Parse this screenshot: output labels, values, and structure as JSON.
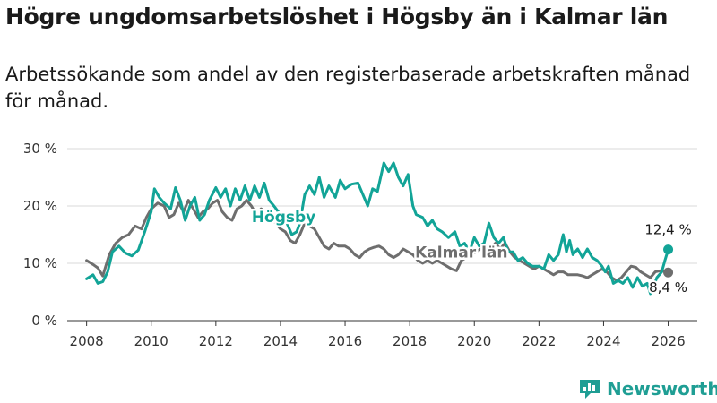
{
  "title": "Högre ungdomsarbetslöshet i Högsby än i Kalmar län",
  "subtitle": "Arbetssökande som andel av den registerbaserade arbetskraften månad för månad.",
  "brand": "Newsworthy",
  "colors": {
    "hogsby": "#12a497",
    "kalmar": "#6e6e6e",
    "grid": "#d9d9d9",
    "axis": "#333333"
  },
  "chart_data": {
    "type": "line",
    "title": "Högre ungdomsarbetslöshet i Högsby än i Kalmar län",
    "xlabel": "",
    "ylabel": "",
    "xlim": [
      2007.4,
      2026.9
    ],
    "ylim": [
      0,
      30
    ],
    "x_ticks": [
      2008,
      2010,
      2012,
      2014,
      2016,
      2018,
      2020,
      2022,
      2024,
      2026
    ],
    "y_ticks": [
      {
        "value": 0,
        "label": "0 %"
      },
      {
        "value": 10,
        "label": "10 %"
      },
      {
        "value": 20,
        "label": "20 %"
      },
      {
        "value": 30,
        "label": "30 %"
      }
    ],
    "grid": true,
    "series": [
      {
        "name": "Högsby",
        "label": "Högsby",
        "label_at": [
          2014.1,
          17.2
        ],
        "end_label": "12,4 %",
        "end_value": 12.4,
        "points": [
          [
            2008.0,
            7.3
          ],
          [
            2008.2,
            8.0
          ],
          [
            2008.35,
            6.5
          ],
          [
            2008.5,
            6.8
          ],
          [
            2008.65,
            8.5
          ],
          [
            2008.8,
            12.0
          ],
          [
            2009.0,
            13.0
          ],
          [
            2009.2,
            11.8
          ],
          [
            2009.4,
            11.3
          ],
          [
            2009.6,
            12.3
          ],
          [
            2009.8,
            15.5
          ],
          [
            2010.0,
            19.0
          ],
          [
            2010.1,
            23.0
          ],
          [
            2010.25,
            21.5
          ],
          [
            2010.4,
            20.5
          ],
          [
            2010.6,
            19.5
          ],
          [
            2010.75,
            23.2
          ],
          [
            2010.9,
            21.0
          ],
          [
            2011.05,
            17.5
          ],
          [
            2011.2,
            20.0
          ],
          [
            2011.35,
            21.5
          ],
          [
            2011.5,
            17.5
          ],
          [
            2011.65,
            18.5
          ],
          [
            2011.8,
            21.0
          ],
          [
            2012.0,
            23.2
          ],
          [
            2012.15,
            21.5
          ],
          [
            2012.3,
            23.0
          ],
          [
            2012.45,
            20.0
          ],
          [
            2012.6,
            23.0
          ],
          [
            2012.75,
            21.0
          ],
          [
            2012.9,
            23.5
          ],
          [
            2013.05,
            21.0
          ],
          [
            2013.2,
            23.5
          ],
          [
            2013.35,
            21.5
          ],
          [
            2013.5,
            24.0
          ],
          [
            2013.65,
            21.0
          ],
          [
            2013.8,
            20.0
          ],
          [
            2014.0,
            18.5
          ],
          [
            2014.2,
            17.0
          ],
          [
            2014.35,
            15.0
          ],
          [
            2014.5,
            15.5
          ],
          [
            2014.6,
            17.0
          ],
          [
            2014.75,
            22.0
          ],
          [
            2014.9,
            23.5
          ],
          [
            2015.05,
            22.0
          ],
          [
            2015.2,
            25.0
          ],
          [
            2015.35,
            21.5
          ],
          [
            2015.5,
            23.5
          ],
          [
            2015.7,
            21.5
          ],
          [
            2015.85,
            24.5
          ],
          [
            2016.0,
            23.0
          ],
          [
            2016.2,
            23.8
          ],
          [
            2016.4,
            24.0
          ],
          [
            2016.55,
            22.0
          ],
          [
            2016.7,
            20.0
          ],
          [
            2016.85,
            23.0
          ],
          [
            2017.0,
            22.5
          ],
          [
            2017.2,
            27.5
          ],
          [
            2017.35,
            26.0
          ],
          [
            2017.5,
            27.5
          ],
          [
            2017.65,
            25.0
          ],
          [
            2017.8,
            23.5
          ],
          [
            2017.95,
            25.5
          ],
          [
            2018.1,
            20.0
          ],
          [
            2018.2,
            18.5
          ],
          [
            2018.4,
            18.0
          ],
          [
            2018.55,
            16.5
          ],
          [
            2018.7,
            17.5
          ],
          [
            2018.85,
            16.0
          ],
          [
            2019.0,
            15.5
          ],
          [
            2019.2,
            14.5
          ],
          [
            2019.4,
            15.5
          ],
          [
            2019.55,
            13.0
          ],
          [
            2019.7,
            13.5
          ],
          [
            2019.85,
            12.0
          ],
          [
            2020.0,
            14.5
          ],
          [
            2020.15,
            13.0
          ],
          [
            2020.3,
            13.5
          ],
          [
            2020.45,
            17.0
          ],
          [
            2020.6,
            14.5
          ],
          [
            2020.75,
            13.5
          ],
          [
            2020.9,
            14.5
          ],
          [
            2021.05,
            12.0
          ],
          [
            2021.2,
            12.0
          ],
          [
            2021.35,
            10.5
          ],
          [
            2021.5,
            11.0
          ],
          [
            2021.65,
            10.0
          ],
          [
            2021.8,
            9.5
          ],
          [
            2022.0,
            9.5
          ],
          [
            2022.15,
            9.0
          ],
          [
            2022.3,
            11.5
          ],
          [
            2022.45,
            10.5
          ],
          [
            2022.6,
            11.5
          ],
          [
            2022.75,
            15.0
          ],
          [
            2022.85,
            12.0
          ],
          [
            2022.95,
            14.0
          ],
          [
            2023.05,
            11.5
          ],
          [
            2023.2,
            12.5
          ],
          [
            2023.35,
            11.0
          ],
          [
            2023.5,
            12.5
          ],
          [
            2023.65,
            11.0
          ],
          [
            2023.8,
            10.5
          ],
          [
            2023.95,
            9.5
          ],
          [
            2024.05,
            8.5
          ],
          [
            2024.15,
            9.5
          ],
          [
            2024.3,
            6.5
          ],
          [
            2024.45,
            7.0
          ],
          [
            2024.6,
            6.5
          ],
          [
            2024.75,
            7.5
          ],
          [
            2024.9,
            5.8
          ],
          [
            2025.05,
            7.5
          ],
          [
            2025.2,
            6.0
          ],
          [
            2025.35,
            6.5
          ],
          [
            2025.45,
            4.7
          ],
          [
            2025.55,
            6.0
          ],
          [
            2025.65,
            7.5
          ],
          [
            2025.8,
            8.5
          ],
          [
            2025.9,
            10.5
          ],
          [
            2026.0,
            12.4
          ]
        ]
      },
      {
        "name": "Kalmar län",
        "label": "Kalmar län",
        "label_at": [
          2019.6,
          11.0
        ],
        "end_label": "8,4 %",
        "end_value": 8.4,
        "points": [
          [
            2008.0,
            10.5
          ],
          [
            2008.2,
            9.8
          ],
          [
            2008.35,
            9.2
          ],
          [
            2008.5,
            7.8
          ],
          [
            2008.7,
            11.5
          ],
          [
            2008.9,
            13.5
          ],
          [
            2009.1,
            14.5
          ],
          [
            2009.3,
            15.0
          ],
          [
            2009.5,
            16.5
          ],
          [
            2009.7,
            16.0
          ],
          [
            2009.85,
            18.0
          ],
          [
            2010.0,
            19.5
          ],
          [
            2010.2,
            20.5
          ],
          [
            2010.4,
            20.0
          ],
          [
            2010.55,
            18.0
          ],
          [
            2010.7,
            18.5
          ],
          [
            2010.85,
            20.5
          ],
          [
            2011.0,
            19.0
          ],
          [
            2011.15,
            21.0
          ],
          [
            2011.3,
            19.5
          ],
          [
            2011.45,
            18.0
          ],
          [
            2011.6,
            19.0
          ],
          [
            2011.75,
            19.5
          ],
          [
            2011.9,
            20.5
          ],
          [
            2012.05,
            21.0
          ],
          [
            2012.2,
            19.0
          ],
          [
            2012.35,
            18.0
          ],
          [
            2012.5,
            17.5
          ],
          [
            2012.65,
            19.5
          ],
          [
            2012.8,
            20.0
          ],
          [
            2012.95,
            21.0
          ],
          [
            2013.1,
            20.0
          ],
          [
            2013.25,
            18.5
          ],
          [
            2013.4,
            19.5
          ],
          [
            2013.55,
            19.0
          ],
          [
            2013.7,
            18.5
          ],
          [
            2013.85,
            17.0
          ],
          [
            2014.0,
            16.0
          ],
          [
            2014.15,
            15.5
          ],
          [
            2014.3,
            14.0
          ],
          [
            2014.45,
            13.5
          ],
          [
            2014.6,
            15.0
          ],
          [
            2014.75,
            17.0
          ],
          [
            2014.9,
            16.5
          ],
          [
            2015.05,
            16.0
          ],
          [
            2015.2,
            14.5
          ],
          [
            2015.35,
            13.0
          ],
          [
            2015.5,
            12.5
          ],
          [
            2015.65,
            13.5
          ],
          [
            2015.8,
            13.0
          ],
          [
            2016.0,
            13.0
          ],
          [
            2016.15,
            12.5
          ],
          [
            2016.3,
            11.5
          ],
          [
            2016.45,
            11.0
          ],
          [
            2016.6,
            12.0
          ],
          [
            2016.75,
            12.5
          ],
          [
            2016.9,
            12.8
          ],
          [
            2017.05,
            13.0
          ],
          [
            2017.2,
            12.5
          ],
          [
            2017.35,
            11.5
          ],
          [
            2017.5,
            11.0
          ],
          [
            2017.65,
            11.5
          ],
          [
            2017.8,
            12.5
          ],
          [
            2017.95,
            12.0
          ],
          [
            2018.1,
            11.5
          ],
          [
            2018.25,
            10.5
          ],
          [
            2018.4,
            10.0
          ],
          [
            2018.55,
            10.5
          ],
          [
            2018.7,
            10.0
          ],
          [
            2018.85,
            10.5
          ],
          [
            2019.0,
            10.0
          ],
          [
            2019.15,
            9.5
          ],
          [
            2019.3,
            9.0
          ],
          [
            2019.45,
            8.7
          ],
          [
            2019.6,
            10.5
          ],
          [
            2019.75,
            11.0
          ],
          [
            2019.9,
            11.5
          ],
          [
            2020.05,
            12.0
          ],
          [
            2020.2,
            12.5
          ],
          [
            2020.35,
            12.0
          ],
          [
            2020.5,
            12.5
          ],
          [
            2020.65,
            13.5
          ],
          [
            2020.8,
            12.5
          ],
          [
            2020.95,
            13.5
          ],
          [
            2021.1,
            12.0
          ],
          [
            2021.25,
            11.0
          ],
          [
            2021.4,
            10.5
          ],
          [
            2021.55,
            10.0
          ],
          [
            2021.7,
            9.5
          ],
          [
            2021.85,
            9.0
          ],
          [
            2022.0,
            9.5
          ],
          [
            2022.15,
            9.0
          ],
          [
            2022.3,
            8.5
          ],
          [
            2022.45,
            8.0
          ],
          [
            2022.6,
            8.5
          ],
          [
            2022.75,
            8.5
          ],
          [
            2022.9,
            8.0
          ],
          [
            2023.05,
            8.0
          ],
          [
            2023.2,
            8.0
          ],
          [
            2023.35,
            7.8
          ],
          [
            2023.5,
            7.5
          ],
          [
            2023.65,
            8.0
          ],
          [
            2023.8,
            8.5
          ],
          [
            2023.95,
            9.0
          ],
          [
            2024.1,
            8.5
          ],
          [
            2024.25,
            7.5
          ],
          [
            2024.4,
            7.0
          ],
          [
            2024.55,
            7.5
          ],
          [
            2024.7,
            8.5
          ],
          [
            2024.85,
            9.5
          ],
          [
            2025.0,
            9.3
          ],
          [
            2025.15,
            8.5
          ],
          [
            2025.3,
            8.0
          ],
          [
            2025.45,
            7.5
          ],
          [
            2025.6,
            8.5
          ],
          [
            2025.75,
            8.7
          ],
          [
            2025.9,
            8.6
          ],
          [
            2026.0,
            8.4
          ]
        ]
      }
    ]
  }
}
